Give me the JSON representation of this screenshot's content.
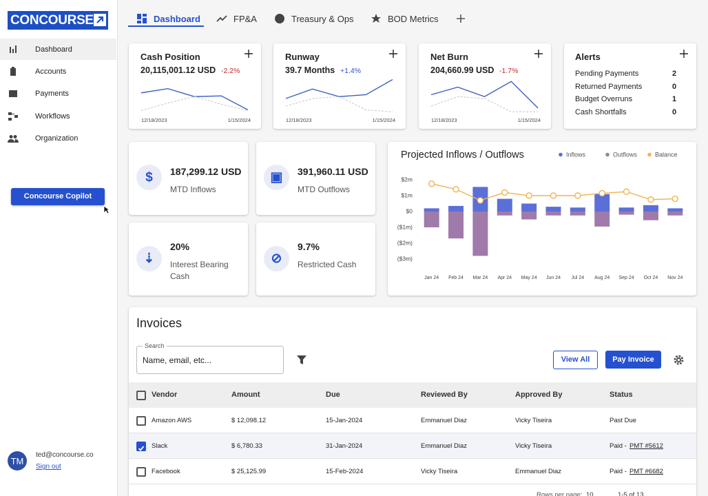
{
  "sidebar": {
    "logo": "CONCOURSE",
    "nav": [
      "Dashboard",
      "Accounts",
      "Payments",
      "Workflows",
      "Organization"
    ],
    "copilot": "Concourse Copilot",
    "user": {
      "initials": "TM",
      "email": "ted@concourse.co",
      "sign_out": "Sign out"
    }
  },
  "tabs": [
    "Dashboard",
    "FP&A",
    "Treasury & Ops",
    "BOD Metrics"
  ],
  "metric_cards": [
    {
      "title": "Cash Position",
      "value": "20,115,001.12 USD",
      "change": "-2.2%",
      "change_color": "#c62828"
    },
    {
      "title": "Runway",
      "value": "39.7 Months",
      "change": "+1.4%",
      "change_color": "#2b4fc7"
    },
    {
      "title": "Net Burn",
      "value": "204,660.99 USD",
      "change": "-1.7%",
      "change_color": "#c62828"
    }
  ],
  "alerts": {
    "title": "Alerts",
    "items": [
      {
        "label": "Pending Payments",
        "count": 2
      },
      {
        "label": "Returned Payments",
        "count": 0
      },
      {
        "label": "Budget Overruns",
        "count": 1
      },
      {
        "label": "Cash Shortfalls",
        "count": 0
      }
    ]
  },
  "kpis": [
    {
      "value": "187,299.12 USD",
      "label": "MTD Inflows"
    },
    {
      "value": "391,960.11 USD",
      "label": "MTD Outflows"
    },
    {
      "value": "20%",
      "label": "Interest Bearing Cash"
    },
    {
      "value": "9.7%",
      "label": "Restricted Cash"
    }
  ],
  "invoices": {
    "title": "Invoices",
    "search_label": "Search",
    "search_placeholder": "Name, email, etc...",
    "view_all": "View All",
    "pay": "Pay Invoice",
    "columns": [
      "Vendor",
      "Amount",
      "Due",
      "Reviewed By",
      "Approved By",
      "Status"
    ],
    "rows": [
      {
        "checked": false,
        "vendor": "Amazon AWS",
        "amount": "$ 12,098.12",
        "due": "15-Jan-2024",
        "reviewed": "Emmanuel Diaz",
        "approved": "Vicky Tiseira",
        "status": "Past Due"
      },
      {
        "checked": true,
        "vendor": "Slack",
        "amount": "$ 6,780.33",
        "due": "31-Jan-2024",
        "reviewed": "Emmanuel Diaz",
        "approved": "Vicky Tiseira",
        "status": "Paid -",
        "link": "PMT #5612"
      },
      {
        "checked": false,
        "vendor": "Facebook",
        "amount": "$ 25,125.99",
        "due": "15-Feb-2024",
        "reviewed": "Vicky Tiseira",
        "approved": "Emmanuel Diaz",
        "status": "Paid -",
        "link": "PMT #6682"
      }
    ],
    "rows_per_page_label": "Rows per page:",
    "rows_per_page": "10",
    "range": "1-5 of 13"
  },
  "chart_data": [
    {
      "type": "line",
      "categories": [
        "12/18/2023",
        null,
        null,
        null,
        "1/15/2024"
      ],
      "ylim": [
        0,
        100
      ],
      "series": [
        {
          "color": "#3f5fc0",
          "values": [
            55,
            66,
            45,
            47,
            10
          ]
        },
        {
          "color": "#cfcfcf",
          "dash": true,
          "values": [
            8,
            28,
            45,
            25,
            8
          ]
        }
      ]
    },
    {
      "type": "line",
      "categories": [
        "12/18/2023",
        null,
        null,
        null,
        "1/15/2024"
      ],
      "ylim": [
        0,
        100
      ],
      "series": [
        {
          "color": "#3f5fc0",
          "values": [
            40,
            65,
            45,
            50,
            90
          ]
        },
        {
          "color": "#cfcfcf",
          "dash": true,
          "values": [
            20,
            40,
            45,
            10,
            5
          ]
        }
      ]
    },
    {
      "type": "line",
      "categories": [
        "12/18/2023",
        null,
        null,
        null,
        "1/15/2024"
      ],
      "ylim": [
        0,
        100
      ],
      "series": [
        {
          "color": "#3f5fc0",
          "values": [
            50,
            70,
            45,
            85,
            15
          ]
        },
        {
          "color": "#cfcfcf",
          "dash": true,
          "values": [
            20,
            45,
            40,
            5,
            5
          ]
        }
      ]
    },
    {
      "type": "bar",
      "title": "Projected Inflows / Outflows",
      "legend": "top-right",
      "grid": false,
      "categories": [
        "Jan 24",
        "Feb 24",
        "Mar 24",
        "Apr 24",
        "May 24",
        "Jun 24",
        "Jul 24",
        "Aug 24",
        "Sep 24",
        "Oct 24",
        "Nov 24"
      ],
      "ylim": [
        -3.2,
        2.3
      ],
      "yticks": [
        {
          "value": 2,
          "label": "$2m"
        },
        {
          "value": 1,
          "label": "$1m"
        },
        {
          "value": 0,
          "label": "$0"
        },
        {
          "value": -1,
          "label": "($1m)"
        },
        {
          "value": -2,
          "label": "($2m)"
        },
        {
          "value": -3,
          "label": "($3m)"
        }
      ],
      "series": [
        {
          "name": "Inflows",
          "type": "bar",
          "color": "#5b6fd8",
          "values": [
            0.2,
            0.35,
            1.55,
            0.8,
            0.5,
            0.3,
            0.25,
            1.1,
            0.25,
            0.4,
            0.2
          ]
        },
        {
          "name": "Outflows",
          "type": "bar",
          "color": "#a07aaa",
          "values": [
            -1.0,
            -1.7,
            -2.8,
            -0.25,
            -0.5,
            -0.25,
            -0.25,
            -0.95,
            -0.2,
            -0.55,
            -0.25
          ]
        },
        {
          "name": "Balance",
          "type": "line",
          "color": "#f3b24f",
          "values": [
            1.75,
            1.4,
            0.7,
            1.2,
            1.0,
            1.0,
            1.0,
            1.15,
            1.25,
            0.75,
            0.8
          ]
        }
      ]
    }
  ]
}
